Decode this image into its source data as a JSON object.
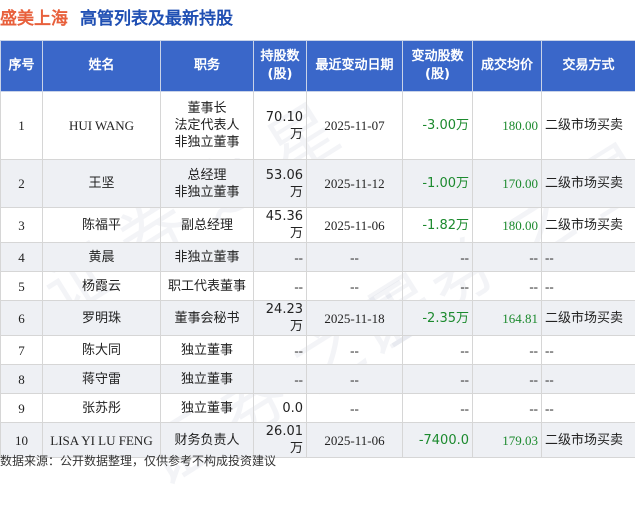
{
  "header": {
    "company": "盛美上海",
    "title": "高管列表及最新持股"
  },
  "table": {
    "columns": [
      "序号",
      "姓名",
      "职务",
      "持股数\n(股)",
      "最近变动日期",
      "变动股数\n(股)",
      "成交均价",
      "交易方式"
    ],
    "rows": [
      {
        "no": "1",
        "name": "HUI WANG",
        "position": "董事长\n法定代表人\n非独立董事",
        "shares": "70.10万",
        "date": "2025-11-07",
        "change": "-3.00万",
        "price": "180.00",
        "method": "二级市场买卖"
      },
      {
        "no": "2",
        "name": "王坚",
        "position": "总经理\n非独立董事",
        "shares": "53.06万",
        "date": "2025-11-12",
        "change": "-1.00万",
        "price": "170.00",
        "method": "二级市场买卖"
      },
      {
        "no": "3",
        "name": "陈福平",
        "position": "副总经理",
        "shares": "45.36万",
        "date": "2025-11-06",
        "change": "-1.82万",
        "price": "180.00",
        "method": "二级市场买卖"
      },
      {
        "no": "4",
        "name": "黄晨",
        "position": "非独立董事",
        "shares": "--",
        "date": "--",
        "change": "--",
        "price": "--",
        "method": "--"
      },
      {
        "no": "5",
        "name": "杨霞云",
        "position": "职工代表董事",
        "shares": "--",
        "date": "--",
        "change": "--",
        "price": "--",
        "method": "--"
      },
      {
        "no": "6",
        "name": "罗明珠",
        "position": "董事会秘书",
        "shares": "24.23万",
        "date": "2025-11-18",
        "change": "-2.35万",
        "price": "164.81",
        "method": "二级市场买卖"
      },
      {
        "no": "7",
        "name": "陈大同",
        "position": "独立董事",
        "shares": "--",
        "date": "--",
        "change": "--",
        "price": "--",
        "method": "--"
      },
      {
        "no": "8",
        "name": "蒋守雷",
        "position": "独立董事",
        "shares": "--",
        "date": "--",
        "change": "--",
        "price": "--",
        "method": "--"
      },
      {
        "no": "9",
        "name": "张苏彤",
        "position": "独立董事",
        "shares": "0.0",
        "date": "--",
        "change": "--",
        "price": "--",
        "method": "--"
      },
      {
        "no": "10",
        "name": "LISA YI LU FENG",
        "position": "财务负责人",
        "shares": "26.01万",
        "date": "2025-11-06",
        "change": "-7400.0",
        "price": "179.03",
        "method": "二级市场买卖"
      }
    ]
  },
  "footer": "数据来源：公开数据整理，仅供参考不构成投资建议",
  "watermark": "证券之星",
  "colors": {
    "company": "#e8603c",
    "title": "#1f4fb3",
    "header_bg": "#3a67c9",
    "change": "#1c8a2e",
    "price": "#1c8a2e"
  }
}
